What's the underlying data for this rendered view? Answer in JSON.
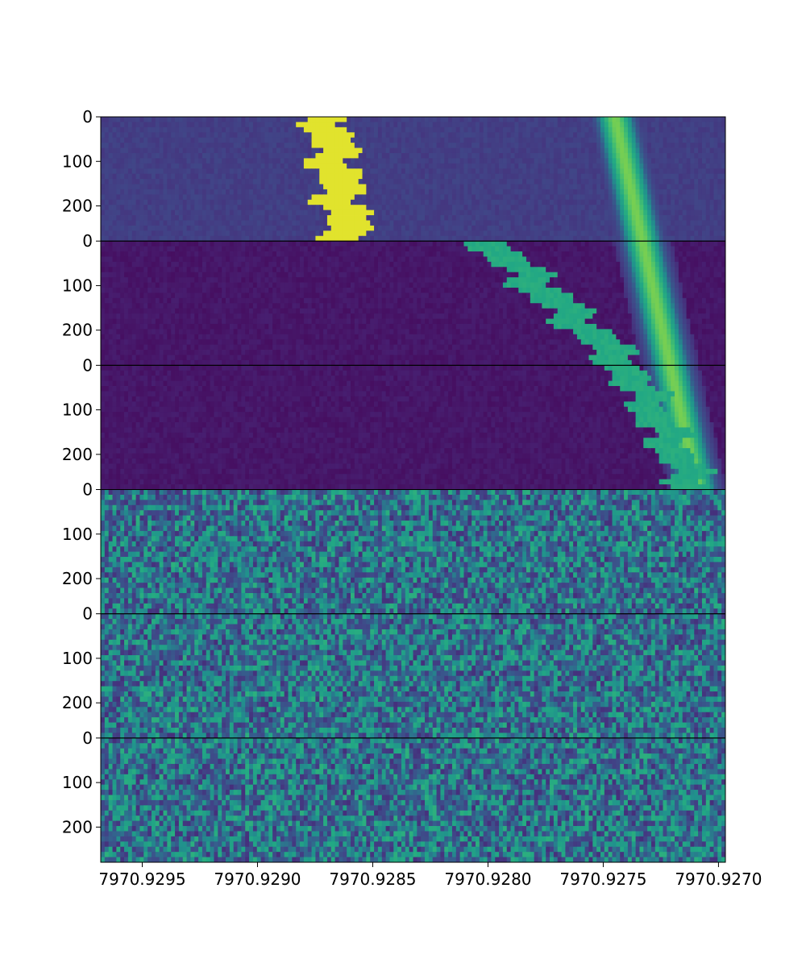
{
  "chart_data": {
    "type": "heatmap",
    "layout": "6 vertically stacked waterfall panels sharing one frequency x-axis (x inverted: high frequency on the left)",
    "colormap": "viridis",
    "colors": {
      "low": "#440154",
      "mid": "#21908d",
      "high": "#fde725",
      "panel_divider": "#000000",
      "background": "#ffffff"
    },
    "x_axis": {
      "label": "",
      "range": [
        7970.92968,
        7970.92697
      ],
      "inverted": true,
      "ticks": [
        7970.9295,
        7970.929,
        7970.9285,
        7970.928,
        7970.9275,
        7970.927
      ],
      "tick_labels": [
        "7970.9295",
        "7970.9290",
        "7970.9285",
        "7970.9280",
        "7970.9275",
        "7970.9270"
      ]
    },
    "panels": [
      {
        "name": "panel-1",
        "y_range": [
          0,
          279
        ],
        "y_ticks": [
          0,
          100,
          200
        ],
        "tick_labels": [
          "0",
          "100",
          "200"
        ],
        "content": "drifting signal",
        "signal": {
          "smooth_track": {
            "freq_start": 7970.92745,
            "freq_end": 7970.92733,
            "width_mhz": 0.00018
          },
          "blocky_track": {
            "freq_start": 7970.9287,
            "freq_end": 7970.9286,
            "width_mhz": 0.00018,
            "value": "high"
          }
        }
      },
      {
        "name": "panel-2",
        "y_range": [
          0,
          279
        ],
        "y_ticks": [
          0,
          100,
          200
        ],
        "tick_labels": [
          "0",
          "100",
          "200"
        ],
        "content": "drifting signal",
        "signal": {
          "smooth_track": {
            "freq_start": 7970.92733,
            "freq_end": 7970.92721,
            "width_mhz": 0.00018
          },
          "blocky_track": {
            "freq_start": 7970.928,
            "freq_end": 7970.9274,
            "width_mhz": 0.00018,
            "value": "mid"
          }
        }
      },
      {
        "name": "panel-3",
        "y_range": [
          0,
          279
        ],
        "y_ticks": [
          0,
          100,
          200
        ],
        "tick_labels": [
          "0",
          "100",
          "200"
        ],
        "content": "drifting signal",
        "signal": {
          "smooth_track": {
            "freq_start": 7970.92721,
            "freq_end": 7970.92709,
            "width_mhz": 0.00018
          },
          "blocky_track": {
            "freq_start": 7970.9274,
            "freq_end": 7970.9271,
            "width_mhz": 0.00016,
            "value": "mid"
          }
        }
      },
      {
        "name": "panel-4",
        "y_range": [
          0,
          279
        ],
        "y_ticks": [
          0,
          100,
          200
        ],
        "tick_labels": [
          "0",
          "100",
          "200"
        ],
        "content": "noise"
      },
      {
        "name": "panel-5",
        "y_range": [
          0,
          279
        ],
        "y_ticks": [
          0,
          100,
          200
        ],
        "tick_labels": [
          "0",
          "100",
          "200"
        ],
        "content": "noise"
      },
      {
        "name": "panel-6",
        "y_range": [
          0,
          279
        ],
        "y_ticks": [
          0,
          100,
          200
        ],
        "tick_labels": [
          "0",
          "100",
          "200"
        ],
        "content": "noise"
      }
    ]
  }
}
